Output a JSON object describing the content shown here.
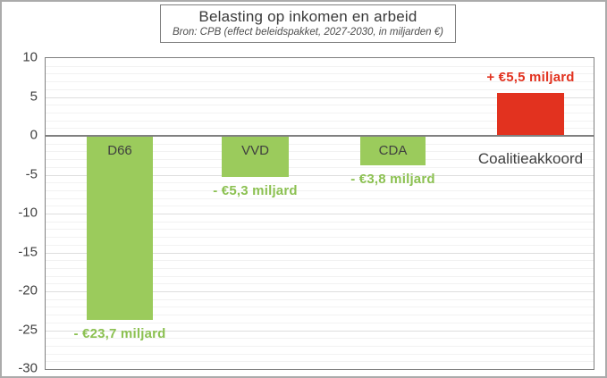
{
  "header": {
    "title": "Belasting op inkomen en arbeid",
    "subtitle": "Bron: CPB (effect beleidspakket, 2027-2030, in miljarden €)"
  },
  "chart_data": {
    "type": "bar",
    "title": "Belasting op inkomen en arbeid",
    "subtitle": "Bron: CPB (effect beleidspakket, 2027-2030, in miljarden €)",
    "categories": [
      "D66",
      "VVD",
      "CDA",
      "Coalitieakkoord"
    ],
    "values": [
      -23.7,
      -5.3,
      -3.8,
      5.5
    ],
    "value_labels": [
      "- €23,7 miljard",
      "- €5,3 miljard",
      "- €3,8 miljard",
      "+ €5,5 miljard"
    ],
    "xlabel": "",
    "ylabel": "",
    "ylim": [
      -30,
      10
    ],
    "yticks": [
      10,
      5,
      0,
      -5,
      -10,
      -15,
      -20,
      -25,
      -30
    ],
    "ytick_step_major": 5,
    "ytick_step_minor": 1,
    "grid": "horizontal",
    "legend": "none",
    "colors": {
      "bar_negative": "#9bcb5c",
      "bar_positive": "#e2321f",
      "label_negative": "#8cc152",
      "label_positive": "#e2321f",
      "category_text": "#3f3f3f",
      "axis": "#808080",
      "grid_major": "#dedede",
      "grid_minor": "#f2f2f2"
    }
  }
}
